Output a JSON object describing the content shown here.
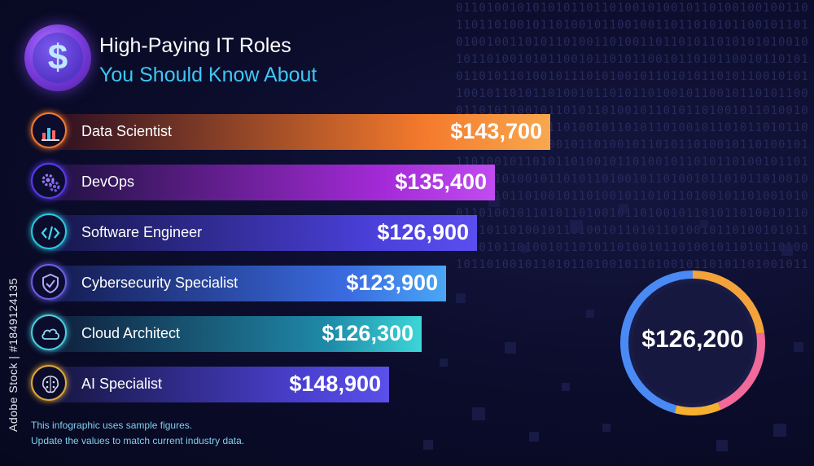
{
  "header": {
    "logo_glyph": "$",
    "title_line1": "High-Paying IT Roles",
    "title_line2": "You Should Know About",
    "title2_color": "#3fc6f5"
  },
  "chart_data": {
    "type": "bar",
    "orientation": "horizontal",
    "categories": [
      "Data Scientist",
      "DevOps",
      "Software Engineer",
      "Cybersecurity Specialist",
      "Cloud Architect",
      "AI Specialist"
    ],
    "values": [
      143700,
      135400,
      126900,
      123900,
      126300,
      148900
    ],
    "value_labels": [
      "$143,700",
      "$135,400",
      "$126,900",
      "$123,900",
      "$126,300",
      "$148,900"
    ],
    "bar_gradients": [
      [
        "#2a0e22",
        "#f47a2c",
        "#f8a84f"
      ],
      [
        "#1e1240",
        "#a42ad8",
        "#c04cf0"
      ],
      [
        "#16174a",
        "#4a3fd8",
        "#5a4ef0"
      ],
      [
        "#141a4e",
        "#3a6be0",
        "#4aa6f5"
      ],
      [
        "#0f1d3a",
        "#1f8aa8",
        "#3cd6d8"
      ],
      [
        "#15163f",
        "#4a40d0",
        "#5a50ea"
      ]
    ],
    "icon_ring_colors": [
      "#f47a2c",
      "#5a3af0",
      "#2ac8e0",
      "#6a60e8",
      "#4acfe0",
      "#e0a83a"
    ],
    "icons": [
      "chart-icon",
      "gears-icon",
      "code-icon",
      "shield-icon",
      "cloud-icon",
      "brain-chip-icon"
    ],
    "average": {
      "label": "$126,200",
      "ring_colors": [
        "#f3a33a",
        "#f26a9a",
        "#4a8af5",
        "#f5b030"
      ]
    }
  },
  "notes": [
    "This infographic uses sample figures.",
    "Update the values to match current industry data."
  ],
  "side_credit": "Adobe Stock | #1849124135",
  "binary_text": "0110100101010101101101001010010110100100100110\n1101101001011010010110010011011010101100101101\n0100100110101101001101001101101011010101010010\n1011010010101100101101011001011010110010110101\n0110101101001011101010010110101011010110010101\n1001011010110100101101011010010110010110101100\n0110101100101101011010010110101101001011010010\n1010110100101101001011010110100101101011010110\n0101101011010010110100101101011010010110100101\n1101001011010110100101101001011010110100101101\n0010110100101101011010010110100101101011010010\n1011010110100101101001011010110100101101001010\n0110100101101011010010110100101101011010010110\n1101011010010110100101101011010010110100101011\n0100101101001011010110100101101001011010110100\n1011010010110101101001011010010110101101001011"
}
